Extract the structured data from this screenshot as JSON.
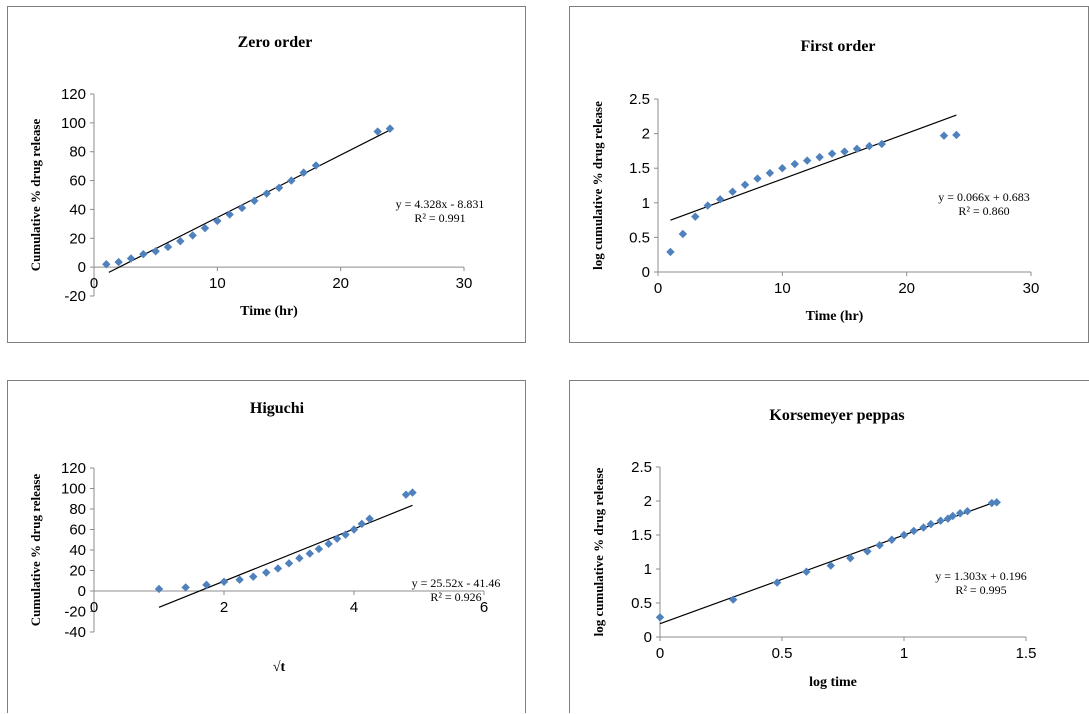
{
  "chart_data": [
    {
      "type": "scatter",
      "title": "Zero order",
      "xlabel": "Time (hr)",
      "ylabel": "Cumulative % drug release",
      "xlim": [
        0,
        30
      ],
      "ylim": [
        -20,
        120
      ],
      "xticks": [
        "0",
        "10",
        "20",
        "30"
      ],
      "yticks": [
        "-20",
        "0",
        "20",
        "40",
        "60",
        "80",
        "100",
        "120"
      ],
      "points": {
        "x": [
          1,
          2,
          3,
          4,
          5,
          6,
          7,
          8,
          9,
          10,
          11,
          12,
          13,
          14,
          15,
          16,
          17,
          18,
          23,
          24
        ],
        "y": [
          2,
          3.5,
          6,
          9,
          11,
          14,
          18,
          22,
          27,
          32,
          36.5,
          41,
          46,
          51,
          55,
          60,
          65.5,
          70.5,
          94,
          96
        ]
      },
      "trendline": {
        "slope": 4.328,
        "intercept": -8.831,
        "x_range": [
          1.2,
          24
        ]
      },
      "equation": "y = 4.328x - 8.831",
      "r2": "R² = 0.991",
      "grid": false,
      "legend": "none"
    },
    {
      "type": "scatter",
      "title": "First order",
      "xlabel": "Time (hr)",
      "ylabel": "log cumulative % drug release",
      "xlim": [
        0,
        30
      ],
      "ylim": [
        0,
        2.5
      ],
      "xticks": [
        "0",
        "10",
        "20",
        "30"
      ],
      "yticks": [
        "0",
        "0.5",
        "1",
        "1.5",
        "2",
        "2.5"
      ],
      "points": {
        "x": [
          1,
          2,
          3,
          4,
          5,
          6,
          7,
          8,
          9,
          10,
          11,
          12,
          13,
          14,
          15,
          16,
          17,
          18,
          23,
          24
        ],
        "y": [
          0.29,
          0.55,
          0.8,
          0.96,
          1.05,
          1.16,
          1.26,
          1.35,
          1.43,
          1.5,
          1.56,
          1.61,
          1.66,
          1.71,
          1.74,
          1.78,
          1.82,
          1.85,
          1.97,
          1.98
        ]
      },
      "trendline": {
        "slope": 0.066,
        "intercept": 0.683,
        "x_range": [
          1,
          24
        ]
      },
      "equation": "y = 0.066x + 0.683",
      "r2": "R² = 0.860",
      "grid": false,
      "legend": "none"
    },
    {
      "type": "scatter",
      "title": "Higuchi",
      "xlabel": "√t",
      "ylabel": "Cumulative % drug release",
      "xlim": [
        0,
        6
      ],
      "ylim": [
        -40,
        120
      ],
      "xticks": [
        "0",
        "2",
        "4",
        "6"
      ],
      "yticks": [
        "-40",
        "-20",
        "0",
        "20",
        "40",
        "60",
        "80",
        "100",
        "120"
      ],
      "points": {
        "x": [
          1,
          1.41,
          1.73,
          2,
          2.24,
          2.45,
          2.65,
          2.83,
          3,
          3.16,
          3.32,
          3.46,
          3.61,
          3.74,
          3.87,
          4,
          4.12,
          4.24,
          4.8,
          4.9
        ],
        "y": [
          2,
          3.5,
          6,
          9,
          11,
          14,
          18,
          22,
          27,
          32,
          36.5,
          41,
          46,
          51,
          55,
          60,
          65.5,
          70.5,
          94,
          96
        ]
      },
      "trendline": {
        "slope": 25.52,
        "intercept": -41.46,
        "x_range": [
          1,
          4.9
        ]
      },
      "equation": "y = 25.52x - 41.46",
      "r2": "R² = 0.926",
      "grid": false,
      "legend": "none"
    },
    {
      "type": "scatter",
      "title": "Korsemeyer peppas",
      "xlabel": "log time",
      "ylabel": "log cumulative % drug release",
      "xlim": [
        0,
        1.5
      ],
      "ylim": [
        0,
        2.5
      ],
      "xticks": [
        "0",
        "0.5",
        "1",
        "1.5"
      ],
      "yticks": [
        "0",
        "0.5",
        "1",
        "1.5",
        "2",
        "2.5"
      ],
      "points": {
        "x": [
          0,
          0.3,
          0.48,
          0.6,
          0.7,
          0.78,
          0.85,
          0.9,
          0.95,
          1,
          1.04,
          1.08,
          1.11,
          1.15,
          1.18,
          1.2,
          1.23,
          1.26,
          1.36,
          1.38
        ],
        "y": [
          0.29,
          0.55,
          0.8,
          0.96,
          1.05,
          1.16,
          1.26,
          1.35,
          1.43,
          1.5,
          1.56,
          1.61,
          1.66,
          1.71,
          1.74,
          1.78,
          1.82,
          1.85,
          1.97,
          1.98
        ]
      },
      "trendline": {
        "slope": 1.303,
        "intercept": 0.196,
        "x_range": [
          0,
          1.38
        ]
      },
      "equation": "y = 1.303x + 0.196",
      "r2": "R² = 0.995",
      "grid": false,
      "legend": "none"
    }
  ]
}
